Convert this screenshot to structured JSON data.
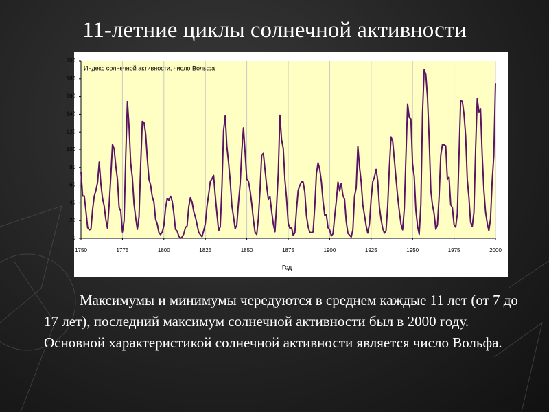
{
  "slide_title": "11-летние циклы солнечной активности",
  "chart_data": {
    "type": "line",
    "annotation": "Индекс солнечной активности, число Вольфа",
    "x_label": "Год",
    "color": "#5a1463",
    "x": [
      1750,
      1751,
      1752,
      1753,
      1754,
      1755,
      1756,
      1757,
      1758,
      1759,
      1760,
      1761,
      1762,
      1763,
      1764,
      1765,
      1766,
      1767,
      1768,
      1769,
      1770,
      1771,
      1772,
      1773,
      1774,
      1775,
      1776,
      1777,
      1778,
      1779,
      1780,
      1781,
      1782,
      1783,
      1784,
      1785,
      1786,
      1787,
      1788,
      1789,
      1790,
      1791,
      1792,
      1793,
      1794,
      1795,
      1796,
      1797,
      1798,
      1799,
      1800,
      1801,
      1802,
      1803,
      1804,
      1805,
      1806,
      1807,
      1808,
      1809,
      1810,
      1811,
      1812,
      1813,
      1814,
      1815,
      1816,
      1817,
      1818,
      1819,
      1820,
      1821,
      1822,
      1823,
      1824,
      1825,
      1826,
      1827,
      1828,
      1829,
      1830,
      1831,
      1832,
      1833,
      1834,
      1835,
      1836,
      1837,
      1838,
      1839,
      1840,
      1841,
      1842,
      1843,
      1844,
      1845,
      1846,
      1847,
      1848,
      1849,
      1850,
      1851,
      1852,
      1853,
      1854,
      1855,
      1856,
      1857,
      1858,
      1859,
      1860,
      1861,
      1862,
      1863,
      1864,
      1865,
      1866,
      1867,
      1868,
      1869,
      1870,
      1871,
      1872,
      1873,
      1874,
      1875,
      1876,
      1877,
      1878,
      1879,
      1880,
      1881,
      1882,
      1883,
      1884,
      1885,
      1886,
      1887,
      1888,
      1889,
      1890,
      1891,
      1892,
      1893,
      1894,
      1895,
      1896,
      1897,
      1898,
      1899,
      1900,
      1901,
      1902,
      1903,
      1904,
      1905,
      1906,
      1907,
      1908,
      1909,
      1910,
      1911,
      1912,
      1913,
      1914,
      1915,
      1916,
      1917,
      1918,
      1919,
      1920,
      1921,
      1922,
      1923,
      1924,
      1925,
      1926,
      1927,
      1928,
      1929,
      1930,
      1931,
      1932,
      1933,
      1934,
      1935,
      1936,
      1937,
      1938,
      1939,
      1940,
      1941,
      1942,
      1943,
      1944,
      1945,
      1946,
      1947,
      1948,
      1949,
      1950,
      1951,
      1952,
      1953,
      1954,
      1955,
      1956,
      1957,
      1958,
      1959,
      1960,
      1961,
      1962,
      1963,
      1964,
      1965,
      1966,
      1967,
      1968,
      1969,
      1970,
      1971,
      1972,
      1973,
      1974,
      1975,
      1976,
      1977,
      1978,
      1979,
      1980,
      1981,
      1982,
      1983,
      1984,
      1985,
      1986,
      1987,
      1988,
      1989,
      1990,
      1991,
      1992,
      1993,
      1994,
      1995,
      1996,
      1997,
      1998,
      1999,
      2000
    ],
    "values": [
      75,
      47.7,
      47.8,
      30.7,
      12.2,
      9.6,
      10.2,
      32.4,
      47.6,
      54,
      62.9,
      85.9,
      61.2,
      45.1,
      36.4,
      20.9,
      11.4,
      37.8,
      69.8,
      106.1,
      100.8,
      81.6,
      66.5,
      34.8,
      30.6,
      7,
      19.8,
      92.5,
      154.4,
      125.9,
      84.8,
      68.1,
      38.5,
      22.8,
      10.2,
      24.1,
      82.9,
      132,
      130.9,
      118.1,
      89.9,
      66.6,
      60,
      46.9,
      41,
      21.3,
      16,
      6.4,
      4.1,
      6.8,
      14.5,
      34,
      45,
      43.1,
      47.5,
      42.2,
      28.1,
      10.1,
      8.1,
      2.5,
      0,
      1.4,
      5,
      12.2,
      13.9,
      35.4,
      45.8,
      41.1,
      30.1,
      23.9,
      15.6,
      6.6,
      4,
      1.8,
      8.5,
      16.6,
      36.3,
      49.6,
      64.2,
      67,
      70.9,
      47.8,
      27.5,
      8.5,
      13.2,
      56.9,
      121.5,
      138.3,
      103.2,
      85.7,
      64.6,
      36.7,
      24.2,
      10.7,
      15,
      40.1,
      61.5,
      98.5,
      124.7,
      96.3,
      66.6,
      64.5,
      54.1,
      39,
      20.6,
      6.7,
      4.3,
      22.7,
      54.8,
      93.8,
      95.8,
      77.2,
      59.1,
      44,
      47,
      30.5,
      16.3,
      7.3,
      37.6,
      74,
      139,
      111.2,
      101.6,
      66.2,
      44.7,
      17,
      11.3,
      12.4,
      3.4,
      6,
      32.3,
      54.3,
      59.7,
      63.7,
      63.5,
      52.2,
      25.4,
      13.1,
      6.8,
      6.3,
      7.1,
      35.6,
      73,
      85.1,
      78,
      64,
      41.8,
      26.2,
      26.7,
      12.1,
      9.5,
      2.7,
      5,
      24.4,
      42,
      63.5,
      53.8,
      62,
      48.5,
      43.9,
      18.6,
      5.7,
      3.6,
      1.4,
      9.6,
      47.4,
      57.1,
      103.9,
      80.6,
      63.6,
      37.6,
      26.1,
      14.2,
      5.8,
      16.7,
      44.3,
      63.9,
      69,
      77.8,
      64.9,
      35.7,
      21.2,
      11.1,
      5.7,
      8.7,
      36.1,
      79.7,
      114.4,
      109.6,
      88.8,
      67.8,
      47.5,
      30.6,
      16.3,
      9.6,
      33.2,
      92.6,
      151.6,
      136.3,
      134.7,
      83.9,
      69.4,
      31.5,
      13.9,
      4.4,
      38,
      141.7,
      190.2,
      184.8,
      159,
      112.3,
      53.9,
      37.5,
      27.9,
      10.2,
      15.1,
      47,
      93.8,
      105.9,
      105.5,
      104.5,
      66.6,
      68.9,
      38,
      34.5,
      15.5,
      12.6,
      27.5,
      92.5,
      155.4,
      154.6,
      140.4,
      115.9,
      66.6,
      45.9,
      17.9,
      13.4,
      29.4,
      100.2,
      157.6,
      142.6,
      145.7,
      94.3,
      54.6,
      29.9,
      17.5,
      8.6,
      21.5,
      64.3,
      93.3,
      175
    ],
    "xlim": [
      1750,
      2000
    ],
    "xticks": [
      1750,
      1775,
      1800,
      1825,
      1850,
      1875,
      1900,
      1925,
      1950,
      1975,
      2000
    ],
    "ylim": [
      0,
      200
    ],
    "yticks": [
      0,
      20,
      40,
      60,
      80,
      100,
      120,
      140,
      160,
      180,
      200
    ],
    "xgrid": true
  },
  "body_text": "Максимумы и минимумы чередуются в среднем каждые 11 лет (от 7 до 17 лет), последний максимум солнечной активности был в 2000 году. Основной характеристикой солнечной активности является число Вольфа."
}
